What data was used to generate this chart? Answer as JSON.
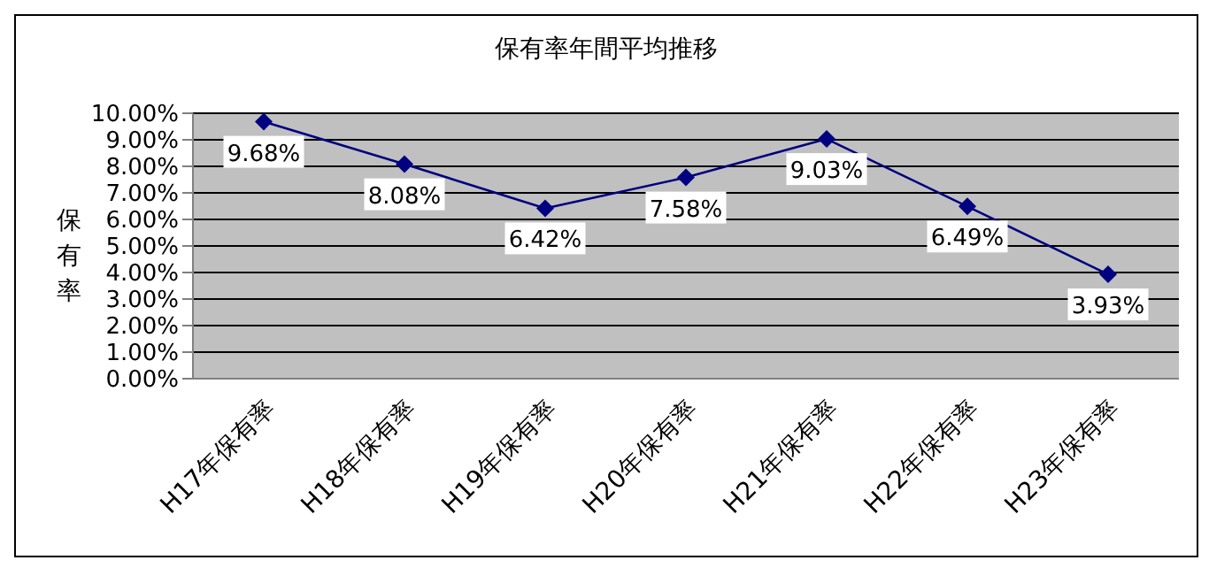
{
  "chart_data": {
    "type": "line",
    "title": "保有率年間平均推移",
    "ylabel": "保有率",
    "categories": [
      "H17年保有率",
      "H18年保有率",
      "H19年保有率",
      "H20年保有率",
      "H21年保有率",
      "H22年保有率",
      "H23年保有率"
    ],
    "series": [
      {
        "color": "#000080",
        "values": [
          9.68,
          8.08,
          6.42,
          7.58,
          9.03,
          6.49,
          3.93
        ],
        "value_labels": [
          "9.68%",
          "8.08%",
          "6.42%",
          "7.58%",
          "9.03%",
          "6.49%",
          "3.93%"
        ]
      }
    ],
    "ylim": [
      0,
      10
    ],
    "yticks": [
      {
        "value": 0,
        "label": "0.00%"
      },
      {
        "value": 1,
        "label": "1.00%"
      },
      {
        "value": 2,
        "label": "2.00%"
      },
      {
        "value": 3,
        "label": "3.00%"
      },
      {
        "value": 4,
        "label": "4.00%"
      },
      {
        "value": 5,
        "label": "5.00%"
      },
      {
        "value": 6,
        "label": "6.00%"
      },
      {
        "value": 7,
        "label": "7.00%"
      },
      {
        "value": 8,
        "label": "8.00%"
      },
      {
        "value": 9,
        "label": "9.00%"
      },
      {
        "value": 10,
        "label": "10.00%"
      }
    ],
    "grid": "y",
    "marker": "diamond",
    "line_style": "solid",
    "legend": false
  }
}
